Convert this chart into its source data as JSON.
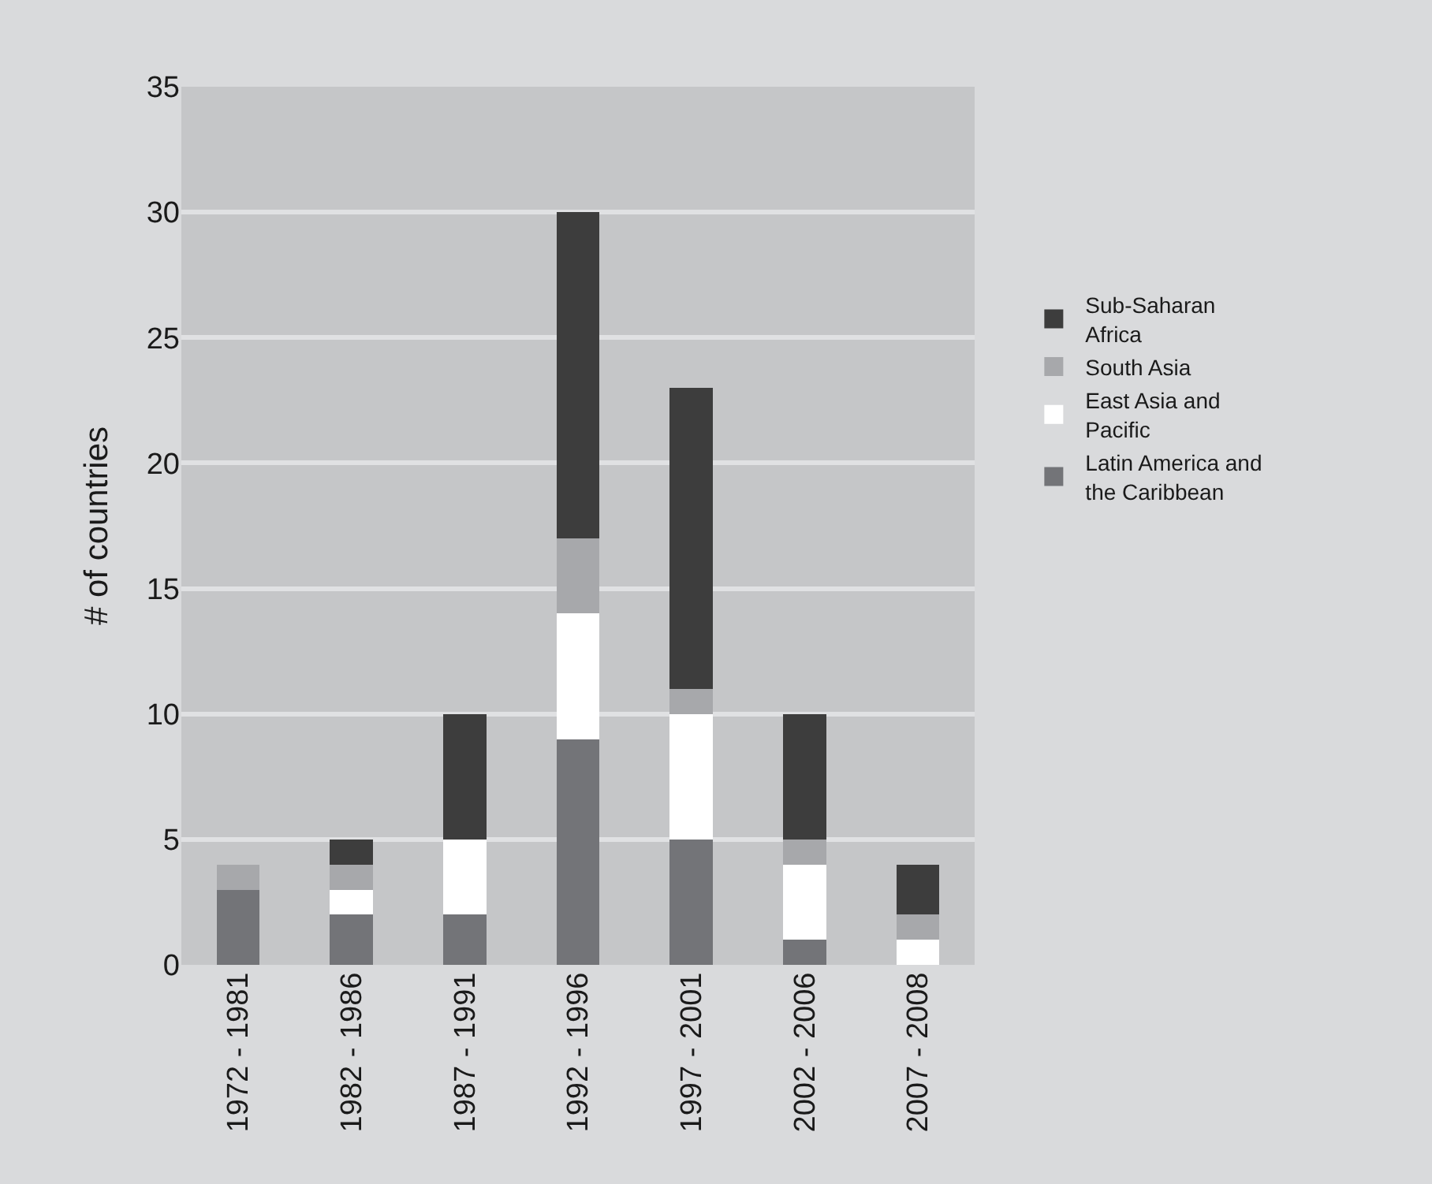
{
  "chart_data": {
    "type": "bar",
    "stacked": true,
    "ylabel": "# of countries",
    "categories": [
      "1972 - 1981",
      "1982 - 1986",
      "1987 - 1991",
      "1992 - 1996",
      "1997 - 2001",
      "2002 - 2006",
      "2007 - 2008"
    ],
    "series": [
      {
        "name": "Latin America and the Caribbean",
        "color": "#737478",
        "values": [
          3,
          2,
          2,
          9,
          5,
          1,
          0
        ]
      },
      {
        "name": "East Asia and Pacific",
        "color": "#ffffff",
        "values": [
          0,
          1,
          3,
          5,
          5,
          3,
          1
        ]
      },
      {
        "name": "South Asia",
        "color": "#a7a8ab",
        "values": [
          1,
          1,
          0,
          3,
          1,
          1,
          1
        ]
      },
      {
        "name": "Sub-Saharan Africa",
        "color": "#3d3d3d",
        "values": [
          0,
          1,
          5,
          13,
          12,
          5,
          2
        ]
      }
    ],
    "ylim": [
      0,
      35
    ],
    "yticks": [
      0,
      5,
      10,
      15,
      20,
      25,
      30,
      35
    ],
    "grid": "y",
    "legend": "right"
  }
}
